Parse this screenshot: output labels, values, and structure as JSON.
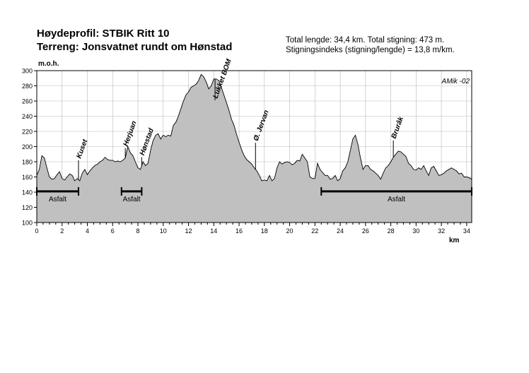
{
  "header": {
    "title_line1": "Høydeprofil:  STBIK Ritt 10",
    "title_line2": "Terreng: Jonsvatnet rundt om Hønstad",
    "stats_line1": "Total lengde: 34,4 km. Total stigning: 473 m.",
    "stats_line2": "Stigningsindeks (stigning/lengde) = 13,8 m/km."
  },
  "chart_data": {
    "type": "area",
    "title": "Høydeprofil:  STBIK Ritt 10",
    "xlabel": "km",
    "ylabel": "m.o.h.",
    "xlim": [
      0,
      34.4
    ],
    "ylim": [
      100,
      300
    ],
    "xticks": [
      0,
      2,
      4,
      6,
      8,
      10,
      12,
      14,
      16,
      18,
      20,
      22,
      24,
      26,
      28,
      30,
      32,
      34
    ],
    "yticks": [
      100,
      120,
      140,
      160,
      180,
      200,
      220,
      240,
      260,
      280,
      300
    ],
    "grid": true,
    "fill_color": "#c0c0c0",
    "watermark": "AMik -02",
    "series": [
      {
        "x": [
          0,
          0.2,
          0.4,
          0.6,
          0.8,
          1.0,
          1.2,
          1.4,
          1.6,
          1.8,
          2.0,
          2.2,
          2.4,
          2.6,
          2.8,
          3.0,
          3.2,
          3.4,
          3.6,
          3.8,
          4.0,
          4.2,
          4.4,
          4.6,
          4.8,
          5.0,
          5.2,
          5.4,
          5.6,
          5.8,
          6.0,
          6.2,
          6.4,
          6.6,
          6.8,
          7.0,
          7.2,
          7.4,
          7.6,
          7.8,
          8.0,
          8.2,
          8.4,
          8.6,
          8.8,
          9.0,
          9.2,
          9.4,
          9.6,
          9.8,
          10.0,
          10.2,
          10.4,
          10.6,
          10.8,
          11.0,
          11.2,
          11.4,
          11.6,
          11.8,
          12.0,
          12.2,
          12.4,
          12.6,
          12.8,
          13.0,
          13.2,
          13.4,
          13.6,
          13.8,
          14.0,
          14.2,
          14.4,
          14.6,
          14.8,
          15.0,
          15.2,
          15.4,
          15.6,
          15.8,
          16.0,
          16.2,
          16.4,
          16.6,
          16.8,
          17.0,
          17.2,
          17.4,
          17.6,
          17.8,
          18.0,
          18.2,
          18.4,
          18.6,
          18.8,
          19.0,
          19.2,
          19.4,
          19.6,
          19.8,
          20.0,
          20.2,
          20.4,
          20.6,
          20.8,
          21.0,
          21.2,
          21.4,
          21.6,
          21.8,
          22.0,
          22.2,
          22.4,
          22.6,
          22.8,
          23.0,
          23.2,
          23.4,
          23.6,
          23.8,
          24.0,
          24.2,
          24.4,
          24.6,
          24.8,
          25.0,
          25.2,
          25.4,
          25.6,
          25.8,
          26.0,
          26.2,
          26.4,
          26.6,
          26.8,
          27.0,
          27.2,
          27.4,
          27.6,
          27.8,
          28.0,
          28.2,
          28.4,
          28.6,
          28.8,
          29.0,
          29.2,
          29.4,
          29.6,
          29.8,
          30.0,
          30.2,
          30.4,
          30.6,
          30.8,
          31.0,
          31.2,
          31.4,
          31.6,
          31.8,
          32.0,
          32.2,
          32.4,
          32.6,
          32.8,
          33.0,
          33.2,
          33.4,
          33.6,
          33.8,
          34.0,
          34.2,
          34.4
        ],
        "y": [
          162,
          170,
          188,
          185,
          172,
          160,
          157,
          158,
          163,
          167,
          158,
          156,
          160,
          164,
          162,
          155,
          158,
          155,
          165,
          170,
          163,
          168,
          172,
          175,
          177,
          180,
          182,
          186,
          183,
          182,
          182,
          180,
          181,
          180,
          182,
          185,
          200,
          192,
          188,
          180,
          172,
          170,
          180,
          175,
          178,
          195,
          208,
          215,
          217,
          210,
          215,
          213,
          215,
          214,
          228,
          232,
          240,
          250,
          260,
          268,
          272,
          278,
          280,
          282,
          287,
          295,
          292,
          285,
          276,
          280,
          289,
          289,
          287,
          278,
          268,
          258,
          248,
          236,
          228,
          216,
          206,
          196,
          188,
          183,
          180,
          177,
          172,
          168,
          162,
          155,
          156,
          155,
          162,
          155,
          158,
          172,
          180,
          177,
          179,
          180,
          179,
          176,
          178,
          182,
          181,
          190,
          185,
          180,
          160,
          158,
          158,
          178,
          170,
          166,
          162,
          162,
          157,
          158,
          162,
          155,
          158,
          168,
          172,
          180,
          195,
          210,
          215,
          203,
          185,
          170,
          175,
          175,
          170,
          168,
          165,
          162,
          157,
          165,
          172,
          175,
          180,
          186,
          190,
          194,
          193,
          190,
          187,
          178,
          175,
          170,
          169,
          172,
          170,
          175,
          168,
          162,
          172,
          174,
          168,
          162,
          163,
          165,
          168,
          170,
          172,
          170,
          168,
          164,
          165,
          160,
          160,
          159,
          157
        ]
      }
    ],
    "place_labels": [
      {
        "label": "Kuset",
        "x": 3.3,
        "y": 182
      },
      {
        "label": "Herjuan",
        "x": 7.0,
        "y": 198
      },
      {
        "label": "Hønstad",
        "x": 8.3,
        "y": 186
      },
      {
        "label": "Lukket BOM",
        "x": 14.1,
        "y": 261
      },
      {
        "label": "Ø. Jervan",
        "x": 17.3,
        "y": 205
      },
      {
        "label": "Brurâk",
        "x": 28.2,
        "y": 208
      }
    ],
    "surface_segments": [
      {
        "label": "Asfalt",
        "start": 0,
        "end": 3.3,
        "y": 141
      },
      {
        "label": "Asfalt",
        "start": 6.7,
        "end": 8.3,
        "y": 141
      },
      {
        "label": "Asfalt",
        "start": 22.5,
        "end": 34.4,
        "y": 141
      }
    ]
  }
}
